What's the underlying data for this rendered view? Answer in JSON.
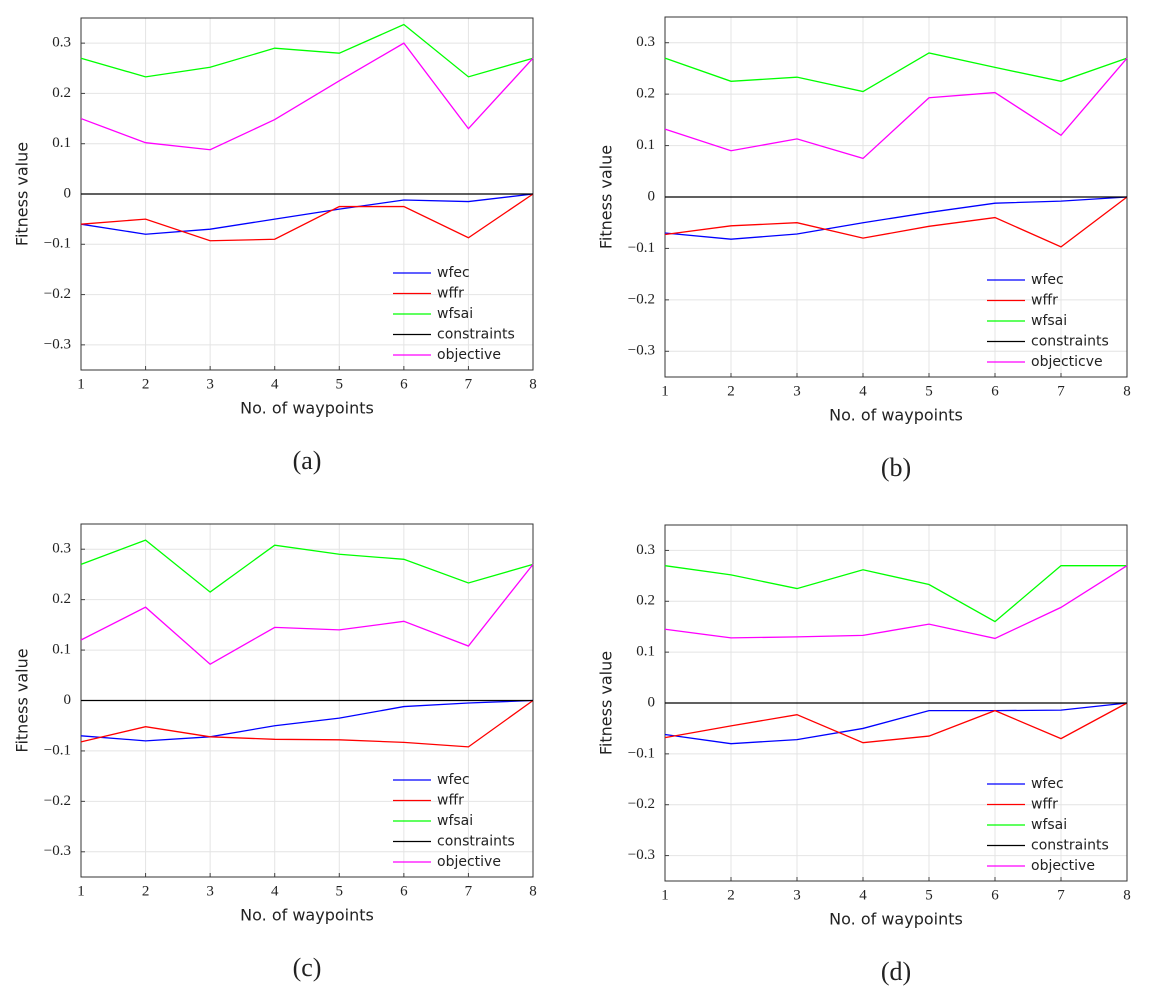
{
  "chart_data": [
    {
      "type": "line",
      "caption": "(a)",
      "x_label": "No. of waypoints",
      "y_label": "Fitness value",
      "x": [
        1,
        2,
        3,
        4,
        5,
        6,
        7,
        8
      ],
      "xlim": [
        1,
        8
      ],
      "xticks": [
        1,
        2,
        3,
        4,
        5,
        6,
        7,
        8
      ],
      "ylim": [
        -0.35,
        0.35
      ],
      "yticks": [
        {
          "value": -0.3,
          "label": "−0.3"
        },
        {
          "value": -0.2,
          "label": "−0.2"
        },
        {
          "value": -0.1,
          "label": "−0.1"
        },
        0,
        0.1,
        0.2,
        0.3
      ],
      "grid": true,
      "legend": "lower right",
      "series": [
        {
          "name": "wfec",
          "color": "#0000ff",
          "values": [
            -0.06,
            -0.08,
            -0.07,
            -0.05,
            -0.03,
            -0.012,
            -0.015,
            0
          ]
        },
        {
          "name": "wffr",
          "color": "#ff0000",
          "values": [
            -0.06,
            -0.05,
            -0.093,
            -0.09,
            -0.025,
            -0.025,
            -0.087,
            0
          ]
        },
        {
          "name": "wfsai",
          "color": "#00ff00",
          "values": [
            0.27,
            0.233,
            0.252,
            0.29,
            0.28,
            0.337,
            0.233,
            0.27
          ]
        },
        {
          "name": "constraints",
          "color": "#000000",
          "values": [
            0,
            0,
            0,
            0,
            0,
            0,
            0,
            0
          ]
        },
        {
          "name": "objective",
          "color": "#ff00ff",
          "values": [
            0.15,
            0.102,
            0.088,
            0.148,
            0.225,
            0.3,
            0.13,
            0.27
          ]
        }
      ]
    },
    {
      "type": "line",
      "caption": "(b)",
      "x_label": "No. of waypoints",
      "y_label": "Fitness value",
      "x": [
        1,
        2,
        3,
        4,
        5,
        6,
        7,
        8
      ],
      "xlim": [
        1,
        8
      ],
      "xticks": [
        1,
        2,
        3,
        4,
        5,
        6,
        7,
        8
      ],
      "ylim": [
        -0.35,
        0.35
      ],
      "yticks": [
        {
          "value": -0.3,
          "label": "−0.3"
        },
        {
          "value": -0.2,
          "label": "−0.2"
        },
        {
          "value": -0.1,
          "label": "−0.1"
        },
        0,
        0.1,
        0.2,
        0.3
      ],
      "grid": true,
      "legend": "lower right",
      "series": [
        {
          "name": "wfec",
          "color": "#0000ff",
          "values": [
            -0.07,
            -0.082,
            -0.072,
            -0.05,
            -0.03,
            -0.012,
            -0.008,
            0
          ]
        },
        {
          "name": "wffr",
          "color": "#ff0000",
          "values": [
            -0.073,
            -0.056,
            -0.05,
            -0.08,
            -0.057,
            -0.04,
            -0.097,
            0
          ]
        },
        {
          "name": "wfsai",
          "color": "#00ff00",
          "values": [
            0.27,
            0.225,
            0.233,
            0.205,
            0.28,
            0.252,
            0.225,
            0.27
          ]
        },
        {
          "name": "constraints",
          "color": "#000000",
          "values": [
            0,
            0,
            0,
            0,
            0,
            0,
            0,
            0
          ]
        },
        {
          "name": "objecticve",
          "color": "#ff00ff",
          "values": [
            0.132,
            0.09,
            0.113,
            0.075,
            0.193,
            0.203,
            0.12,
            0.27
          ]
        }
      ]
    },
    {
      "type": "line",
      "caption": "(c)",
      "x_label": "No. of waypoints",
      "y_label": "Fitness value",
      "x": [
        1,
        2,
        3,
        4,
        5,
        6,
        7,
        8
      ],
      "xlim": [
        1,
        8
      ],
      "xticks": [
        1,
        2,
        3,
        4,
        5,
        6,
        7,
        8
      ],
      "ylim": [
        -0.35,
        0.35
      ],
      "yticks": [
        {
          "value": -0.3,
          "label": "−0.3"
        },
        {
          "value": -0.2,
          "label": "−0.2"
        },
        {
          "value": -0.1,
          "label": "−0.1"
        },
        0,
        0.1,
        0.2,
        0.3
      ],
      "grid": true,
      "legend": "lower right",
      "series": [
        {
          "name": "wfec",
          "color": "#0000ff",
          "values": [
            -0.07,
            -0.08,
            -0.072,
            -0.05,
            -0.035,
            -0.012,
            -0.005,
            0
          ]
        },
        {
          "name": "wffr",
          "color": "#ff0000",
          "values": [
            -0.082,
            -0.052,
            -0.072,
            -0.077,
            -0.078,
            -0.083,
            -0.092,
            0
          ]
        },
        {
          "name": "wfsai",
          "color": "#00ff00",
          "values": [
            0.27,
            0.318,
            0.215,
            0.308,
            0.29,
            0.28,
            0.233,
            0.27
          ]
        },
        {
          "name": "constraints",
          "color": "#000000",
          "values": [
            0,
            0,
            0,
            0,
            0,
            0,
            0,
            0
          ]
        },
        {
          "name": "objective",
          "color": "#ff00ff",
          "values": [
            0.12,
            0.185,
            0.072,
            0.145,
            0.14,
            0.157,
            0.108,
            0.27
          ]
        }
      ]
    },
    {
      "type": "line",
      "caption": "(d)",
      "x_label": "No. of waypoints",
      "y_label": "Fitness value",
      "x": [
        1,
        2,
        3,
        4,
        5,
        6,
        7,
        8
      ],
      "xlim": [
        1,
        8
      ],
      "xticks": [
        1,
        2,
        3,
        4,
        5,
        6,
        7,
        8
      ],
      "ylim": [
        -0.35,
        0.35
      ],
      "yticks": [
        {
          "value": -0.3,
          "label": "−0.3"
        },
        {
          "value": -0.2,
          "label": "−0.2"
        },
        {
          "value": -0.1,
          "label": "−0.1"
        },
        0,
        0.1,
        0.2,
        0.3
      ],
      "grid": true,
      "legend": "lower right",
      "series": [
        {
          "name": "wfec",
          "color": "#0000ff",
          "values": [
            -0.062,
            -0.08,
            -0.072,
            -0.05,
            -0.015,
            -0.015,
            -0.014,
            0
          ]
        },
        {
          "name": "wffr",
          "color": "#ff0000",
          "values": [
            -0.068,
            -0.045,
            -0.023,
            -0.078,
            -0.065,
            -0.015,
            -0.07,
            0
          ]
        },
        {
          "name": "wfsai",
          "color": "#00ff00",
          "values": [
            0.27,
            0.252,
            0.225,
            0.262,
            0.233,
            0.16,
            0.27,
            0.27
          ]
        },
        {
          "name": "constraints",
          "color": "#000000",
          "values": [
            0,
            0,
            0,
            0,
            0,
            0,
            0,
            0
          ]
        },
        {
          "name": "objective",
          "color": "#ff00ff",
          "values": [
            0.145,
            0.128,
            0.13,
            0.133,
            0.155,
            0.127,
            0.188,
            0.27
          ]
        }
      ]
    }
  ]
}
